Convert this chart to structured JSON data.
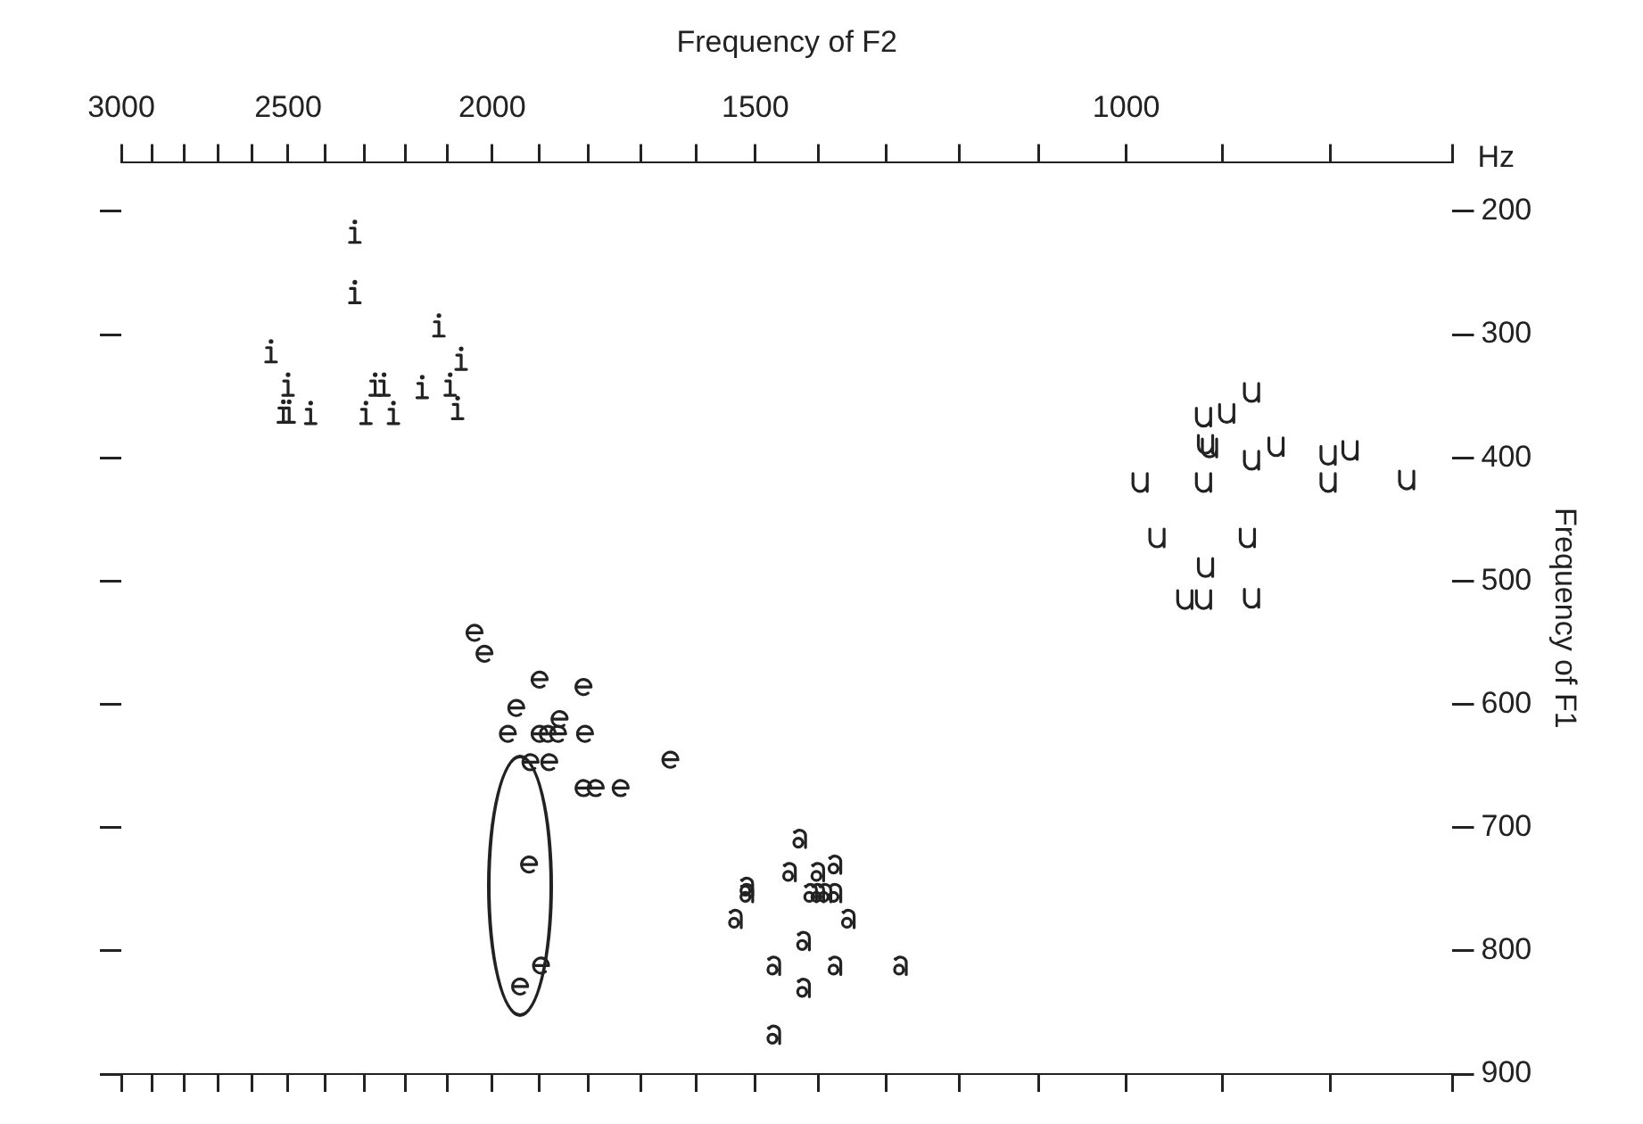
{
  "chart_data": {
    "type": "scatter",
    "xlabel": "Frequency of F2",
    "ylabel": "Frequency of F1",
    "annotations": [
      "Hz"
    ],
    "log": "x",
    "grid": false,
    "legend": false,
    "xlim": [
      3000,
      700
    ],
    "xticks": [
      3000,
      {
        "value": 2900,
        "label": null
      },
      {
        "value": 2800,
        "label": null
      },
      {
        "value": 2700,
        "label": null
      },
      {
        "value": 2600,
        "label": null
      },
      2500,
      {
        "value": 2400,
        "label": null
      },
      {
        "value": 2300,
        "label": null
      },
      {
        "value": 2200,
        "label": null
      },
      {
        "value": 2100,
        "label": null
      },
      2000,
      {
        "value": 1900,
        "label": null
      },
      {
        "value": 1800,
        "label": null
      },
      {
        "value": 1700,
        "label": null
      },
      {
        "value": 1600,
        "label": null
      },
      1500,
      {
        "value": 1400,
        "label": null
      },
      {
        "value": 1300,
        "label": null
      },
      {
        "value": 1200,
        "label": null
      },
      {
        "value": 1100,
        "label": null
      },
      1000,
      {
        "value": 900,
        "label": null
      },
      {
        "value": 800,
        "label": null
      },
      {
        "value": 700,
        "label": null
      }
    ],
    "ylim": [
      900,
      160
    ],
    "yticks": [
      200,
      300,
      400,
      500,
      600,
      700,
      800,
      900
    ],
    "series": [
      {
        "color": "#222222",
        "x": [
          2324,
          2324,
          2120,
          2547,
          2069,
          2500,
          2273,
          2251,
          2159,
          2094,
          2513,
          2497,
          2439,
          2296,
          2228,
          2077
        ],
        "values": [
          218,
          267,
          294,
          315,
          321,
          342,
          342,
          342,
          344,
          342,
          364,
          364,
          365,
          365,
          365,
          361
        ]
      },
      {
        "color": "#222222",
        "x": [
          872,
          919,
          896,
          917,
          913,
          872,
          849,
          802,
          783,
          802,
          736,
          985,
          919,
          967,
          876,
          917,
          938,
          919,
          872
        ],
        "values": [
          347,
          367,
          364,
          389,
          392,
          402,
          391,
          398,
          394,
          420,
          418,
          420,
          420,
          465,
          465,
          489,
          515,
          515,
          514
        ]
      },
      {
        "color": "#222222",
        "x": [
          2039,
          2017,
          1899,
          1810,
          1948,
          1858,
          1966,
          1899,
          1882,
          1861,
          1807,
          1918,
          1879,
          1646,
          1810,
          1786,
          1738,
          1921,
          1896,
          1940
        ],
        "values": [
          542,
          559,
          580,
          586,
          603,
          612,
          624,
          624,
          624,
          624,
          624,
          647,
          647,
          645,
          668,
          668,
          668,
          730,
          812,
          829
        ]
      },
      {
        "color": "#222222",
        "x": [
          1429,
          1445,
          1401,
          1375,
          1514,
          1514,
          1412,
          1401,
          1390,
          1375,
          1533,
          1355,
          1423,
          1470,
          1375,
          1280,
          1423,
          1470
        ],
        "values": [
          709,
          736,
          736,
          730,
          748,
          753,
          753,
          753,
          753,
          753,
          774,
          774,
          792,
          812,
          812,
          812,
          830,
          868
        ]
      }
    ]
  }
}
